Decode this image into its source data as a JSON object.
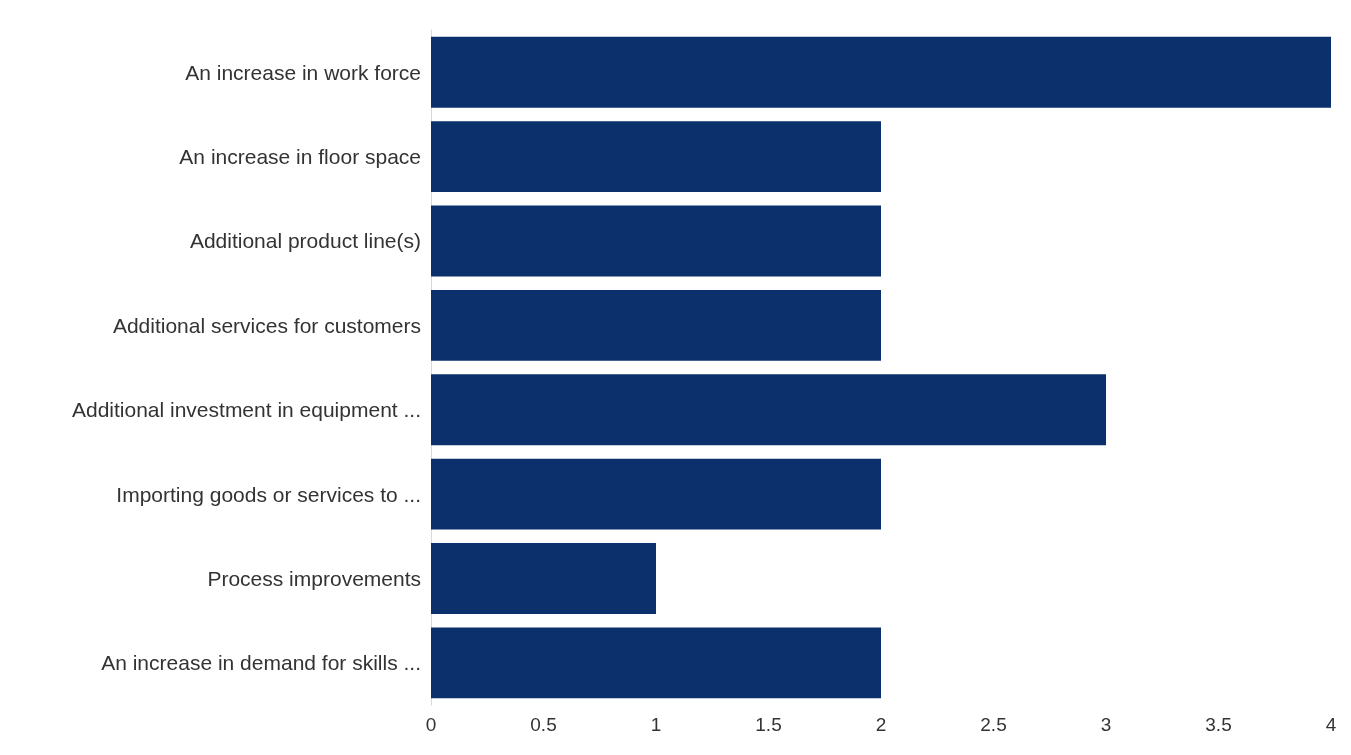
{
  "chart_data": {
    "type": "bar",
    "orientation": "horizontal",
    "categories": [
      "An increase in work force",
      "An increase in floor space",
      "Additional product line(s)",
      "Additional services for customers",
      "Additional investment in equipment ...",
      "Importing goods or services to ...",
      "Process improvements",
      "An increase in demand for skills ..."
    ],
    "values": [
      4,
      2,
      2,
      2,
      3,
      2,
      1,
      2
    ],
    "color": "#0b306b",
    "xlim": [
      0,
      4
    ],
    "xticks": [
      0,
      0.5,
      1,
      1.5,
      2,
      2.5,
      3,
      3.5,
      4
    ],
    "grid": false
  }
}
